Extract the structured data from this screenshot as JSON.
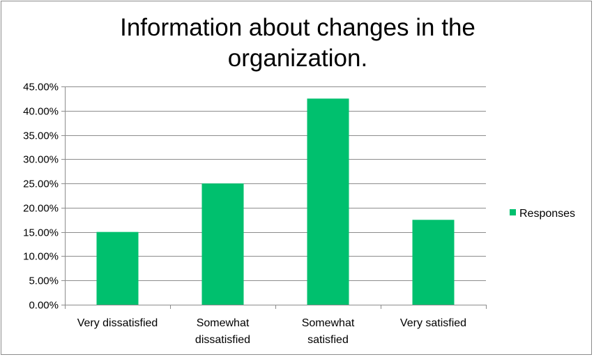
{
  "chart_data": {
    "type": "bar",
    "title": "Information about changes in the organization.",
    "categories": [
      "Very dissatisfied",
      "Somewhat dissatisfied",
      "Somewhat satisfied",
      "Very satisfied"
    ],
    "category_lines": [
      [
        "Very dissatisfied"
      ],
      [
        "Somewhat",
        "dissatisfied"
      ],
      [
        "Somewhat",
        "satisfied"
      ],
      [
        "Very satisfied"
      ]
    ],
    "series": [
      {
        "name": "Responses",
        "values": [
          0.15,
          0.25,
          0.425,
          0.175
        ],
        "color": "#00c06e"
      }
    ],
    "ylim": [
      0,
      0.45
    ],
    "yticks": [
      0,
      0.05,
      0.1,
      0.15,
      0.2,
      0.25,
      0.3,
      0.35,
      0.4,
      0.45
    ],
    "ytick_labels": [
      "0.00%",
      "5.00%",
      "10.00%",
      "15.00%",
      "20.00%",
      "25.00%",
      "30.00%",
      "35.00%",
      "40.00%",
      "45.00%"
    ],
    "grid": true,
    "legend_position": "right",
    "xlabel": "",
    "ylabel": ""
  }
}
